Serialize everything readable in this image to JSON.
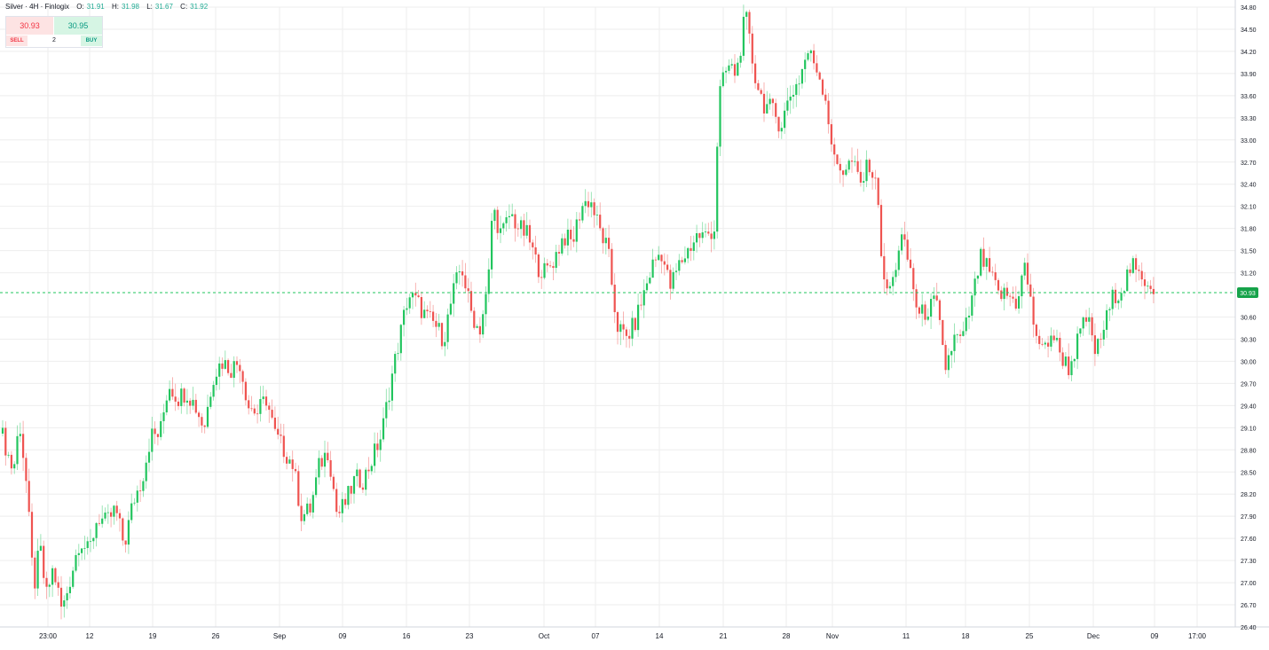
{
  "legend": {
    "symbol": "Silver · 4H · Finlogix",
    "o_label": "O:",
    "o": "31.91",
    "h_label": "H:",
    "h": "31.98",
    "l_label": "L:",
    "l": "31.67",
    "c_label": "C:",
    "c": "31.92"
  },
  "trade": {
    "sell_price": "30.93",
    "buy_price": "30.95",
    "sell_label": "SELL",
    "buy_label": "BUY",
    "quantity": "2"
  },
  "colors": {
    "up": "#26a69a",
    "up_bright": "#22c55e",
    "down": "#ef5350",
    "grid": "#eeeeee",
    "price_line": "#22c55e"
  },
  "chart_data": {
    "type": "line",
    "title": "",
    "xlabel": "",
    "ylabel": "",
    "grid": true,
    "y_axis_position": "right",
    "ylim": [
      26.4,
      34.8
    ],
    "y_ticks": [
      "34.80",
      "34.50",
      "34.20",
      "33.90",
      "33.60",
      "33.30",
      "33.00",
      "32.70",
      "32.40",
      "32.10",
      "31.80",
      "31.50",
      "31.20",
      "30.93",
      "30.60",
      "30.30",
      "30.00",
      "29.70",
      "29.40",
      "29.10",
      "28.80",
      "28.50",
      "28.20",
      "27.90",
      "27.60",
      "27.30",
      "27.00",
      "26.70",
      "26.40"
    ],
    "x_ticks": [
      "23:00",
      "12",
      "19",
      "26",
      "Sep",
      "09",
      "16",
      "23",
      "Oct",
      "07",
      "14",
      "21",
      "28",
      "Nov",
      "11",
      "18",
      "25",
      "Dec",
      "09",
      "17:00"
    ],
    "last_price": "30.93",
    "series": [
      {
        "values": [
          [
            0,
            29.1
          ],
          [
            15,
            28.5
          ],
          [
            22,
            29.2
          ],
          [
            30,
            28.3
          ],
          [
            38,
            26.9
          ],
          [
            45,
            27.5
          ],
          [
            52,
            26.8
          ],
          [
            60,
            27.2
          ],
          [
            70,
            26.6
          ],
          [
            80,
            27.1
          ],
          [
            90,
            27.6
          ],
          [
            100,
            27.4
          ],
          [
            110,
            27.9
          ],
          [
            120,
            27.8
          ],
          [
            130,
            28.0
          ],
          [
            140,
            27.5
          ],
          [
            150,
            28.1
          ],
          [
            160,
            28.4
          ],
          [
            170,
            29.0
          ],
          [
            180,
            29.0
          ],
          [
            190,
            29.7
          ],
          [
            200,
            29.5
          ],
          [
            210,
            29.6
          ],
          [
            220,
            29.4
          ],
          [
            230,
            29.1
          ],
          [
            240,
            29.8
          ],
          [
            250,
            30.0
          ],
          [
            260,
            29.9
          ],
          [
            270,
            30.0
          ],
          [
            280,
            29.4
          ],
          [
            290,
            29.3
          ],
          [
            300,
            29.5
          ],
          [
            310,
            29.0
          ],
          [
            320,
            28.8
          ],
          [
            330,
            28.6
          ],
          [
            340,
            27.9
          ],
          [
            350,
            28.0
          ],
          [
            360,
            28.6
          ],
          [
            370,
            28.8
          ],
          [
            380,
            27.9
          ],
          [
            390,
            28.1
          ],
          [
            400,
            28.4
          ],
          [
            410,
            28.4
          ],
          [
            420,
            28.7
          ],
          [
            430,
            29.0
          ],
          [
            440,
            29.7
          ],
          [
            450,
            30.3
          ],
          [
            460,
            30.9
          ],
          [
            470,
            30.8
          ],
          [
            480,
            30.6
          ],
          [
            490,
            30.5
          ],
          [
            500,
            30.3
          ],
          [
            510,
            30.9
          ],
          [
            520,
            31.3
          ],
          [
            530,
            30.7
          ],
          [
            540,
            30.4
          ],
          [
            550,
            31.0
          ],
          [
            555,
            32.1
          ],
          [
            565,
            31.7
          ],
          [
            575,
            32.0
          ],
          [
            585,
            31.8
          ],
          [
            595,
            31.7
          ],
          [
            605,
            31.3
          ],
          [
            615,
            31.2
          ],
          [
            625,
            31.4
          ],
          [
            635,
            31.7
          ],
          [
            645,
            31.6
          ],
          [
            655,
            32.1
          ],
          [
            665,
            32.2
          ],
          [
            675,
            31.8
          ],
          [
            685,
            31.5
          ],
          [
            695,
            30.5
          ],
          [
            705,
            30.3
          ],
          [
            715,
            30.5
          ],
          [
            725,
            30.9
          ],
          [
            735,
            31.3
          ],
          [
            745,
            31.5
          ],
          [
            755,
            31.0
          ],
          [
            765,
            31.3
          ],
          [
            775,
            31.5
          ],
          [
            785,
            31.7
          ],
          [
            795,
            31.7
          ],
          [
            805,
            31.8
          ],
          [
            810,
            33.6
          ],
          [
            820,
            34.0
          ],
          [
            830,
            33.9
          ],
          [
            840,
            34.7
          ],
          [
            850,
            33.9
          ],
          [
            860,
            33.5
          ],
          [
            870,
            33.4
          ],
          [
            880,
            33.2
          ],
          [
            890,
            33.6
          ],
          [
            900,
            33.8
          ],
          [
            910,
            34.2
          ],
          [
            920,
            34.0
          ],
          [
            930,
            33.6
          ],
          [
            940,
            32.7
          ],
          [
            950,
            32.6
          ],
          [
            960,
            32.7
          ],
          [
            970,
            32.4
          ],
          [
            980,
            32.7
          ],
          [
            990,
            32.2
          ],
          [
            995,
            31.0
          ],
          [
            1005,
            31.0
          ],
          [
            1015,
            31.7
          ],
          [
            1025,
            31.3
          ],
          [
            1035,
            30.6
          ],
          [
            1045,
            30.7
          ],
          [
            1055,
            30.8
          ],
          [
            1065,
            29.9
          ],
          [
            1075,
            30.3
          ],
          [
            1085,
            30.3
          ],
          [
            1095,
            30.8
          ],
          [
            1105,
            31.4
          ],
          [
            1115,
            31.2
          ],
          [
            1125,
            30.9
          ],
          [
            1135,
            30.9
          ],
          [
            1145,
            30.8
          ],
          [
            1155,
            31.3
          ],
          [
            1165,
            30.5
          ],
          [
            1175,
            30.1
          ],
          [
            1185,
            30.4
          ],
          [
            1195,
            30.1
          ],
          [
            1205,
            29.9
          ],
          [
            1215,
            30.3
          ],
          [
            1225,
            30.6
          ],
          [
            1235,
            30.1
          ],
          [
            1245,
            30.5
          ],
          [
            1255,
            30.9
          ],
          [
            1265,
            31.0
          ],
          [
            1275,
            31.3
          ],
          [
            1285,
            31.1
          ],
          [
            1295,
            31.1
          ],
          [
            1302,
            30.93
          ]
        ]
      }
    ]
  }
}
